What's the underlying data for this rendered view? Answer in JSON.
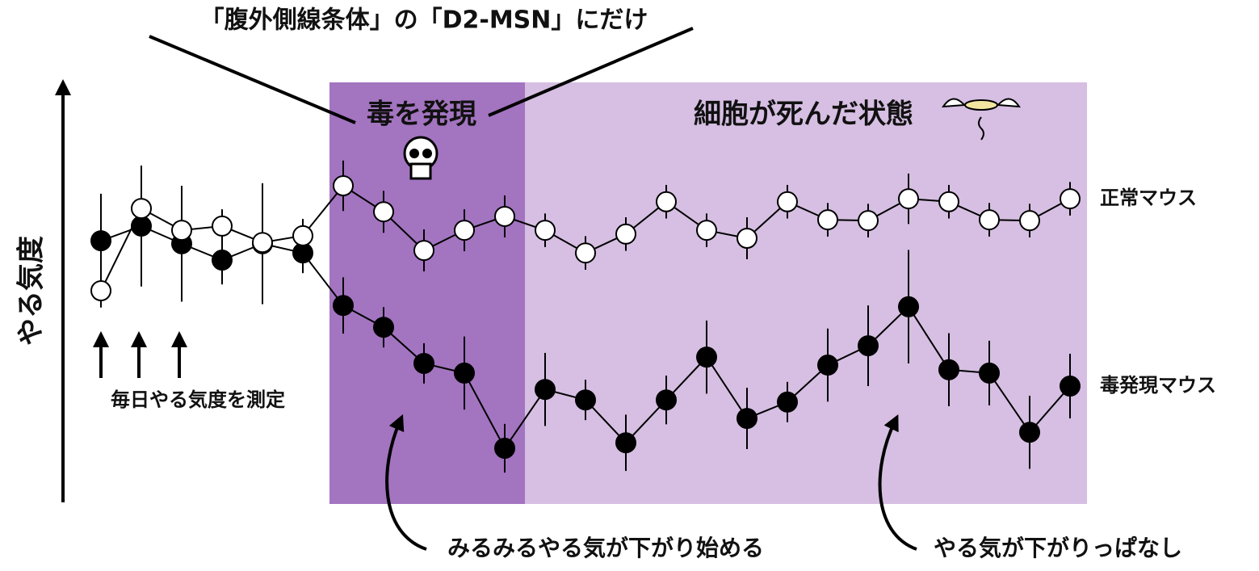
{
  "chart_data": {
    "type": "line",
    "title": "「腹外側線条体」の「D2-MSN」にだけ",
    "y_label": "やる気度",
    "annotations": [
      "毒を発現",
      "細胞が死んだ状態",
      "毎日やる気度を測定",
      "みるみるやる気が下がり始める",
      "やる気が下がりっぱなし"
    ],
    "categories": [
      null,
      null,
      null,
      null,
      null,
      null,
      null,
      null,
      null,
      null,
      null,
      null,
      null,
      null,
      null,
      null,
      null,
      null,
      null,
      null,
      null,
      null,
      null,
      null,
      null
    ],
    "ylim": [
      0,
      100
    ],
    "series": [
      {
        "name": "正常マウス",
        "color": "#ffffff",
        "values": [
          50.0,
          69.6,
          64.4,
          65.4,
          61.5,
          63.1,
          75.0,
          68.8,
          59.6,
          64.4,
          67.7,
          64.4,
          59.0,
          63.5,
          71.2,
          64.4,
          62.5,
          71.2,
          66.9,
          66.7,
          71.9,
          71.2,
          66.9,
          66.7,
          71.9
        ],
        "errors": [
          4.0,
          10.0,
          6.0,
          4.0,
          5.0,
          4.0,
          6.0,
          5.0,
          5.0,
          5.0,
          5.0,
          4.0,
          4.0,
          4.0,
          4.0,
          4.0,
          5.0,
          4.0,
          4.0,
          4.0,
          6.0,
          4.0,
          4.0,
          4.0,
          4.0
        ]
      },
      {
        "name": "毒発現マウス",
        "color": "#000000",
        "values": [
          61.9,
          65.4,
          61.2,
          57.3,
          61.2,
          59.0,
          46.5,
          41.3,
          32.7,
          30.4,
          12.5,
          26.5,
          24.0,
          13.8,
          24.0,
          34.2,
          19.6,
          23.5,
          32.3,
          36.9,
          46.2,
          31.2,
          30.4,
          16.3,
          27.3
        ],
        "errors": [
          11.2,
          14.4,
          13.8,
          5.8,
          14.4,
          4.8,
          6.7,
          4.8,
          4.8,
          8.7,
          5.8,
          8.7,
          4.8,
          6.7,
          5.8,
          8.7,
          7.3,
          4.8,
          8.7,
          9.6,
          13.5,
          8.7,
          7.7,
          8.7,
          7.7
        ]
      }
    ]
  }
}
